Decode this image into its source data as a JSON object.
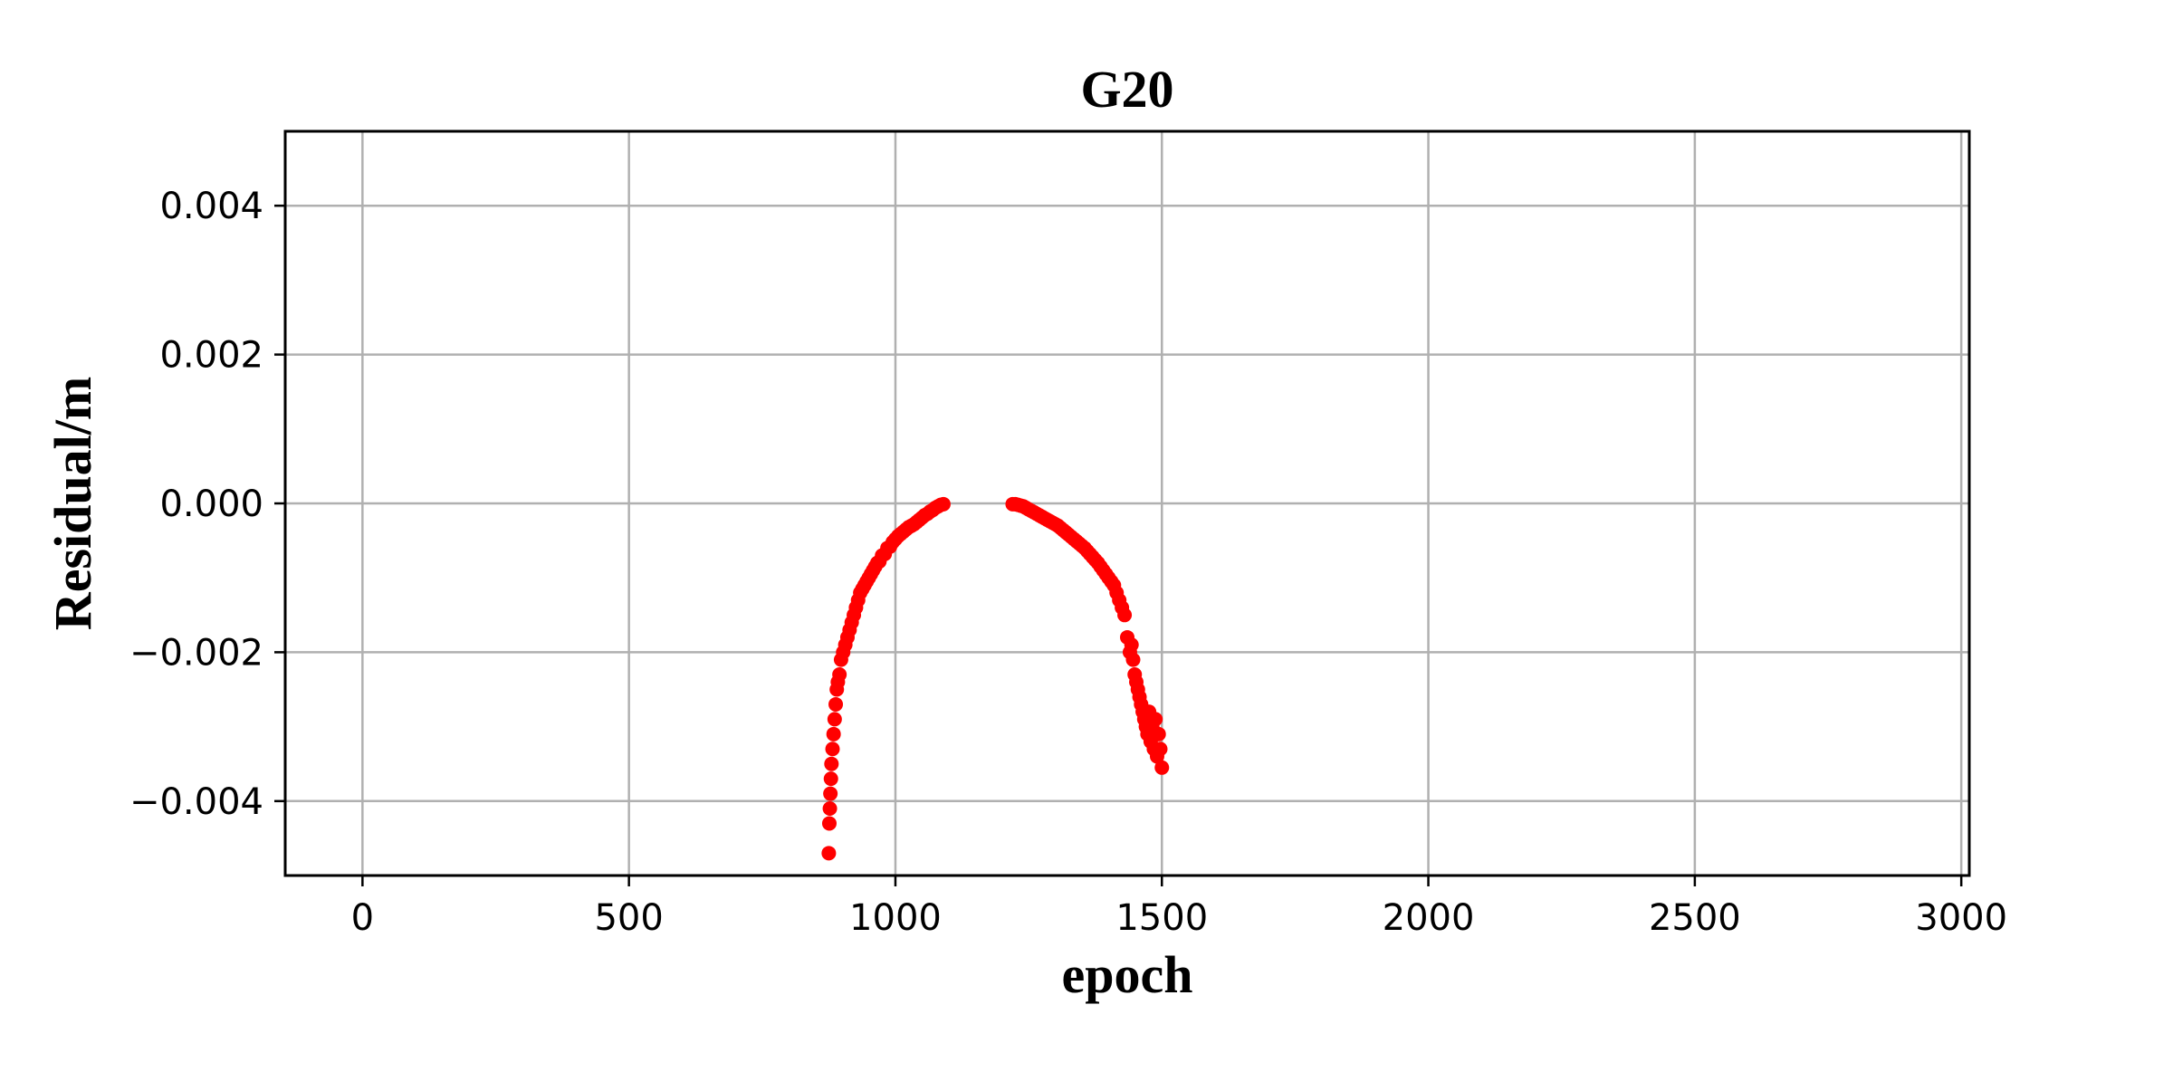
{
  "chart_data": {
    "type": "scatter",
    "title": "G20",
    "xlabel": "epoch",
    "ylabel": "Residual/m",
    "xlim": [
      -145,
      3015
    ],
    "ylim": [
      -0.005,
      0.005
    ],
    "x_ticks": [
      0,
      500,
      1000,
      1500,
      2000,
      2500,
      3000
    ],
    "x_tick_labels": [
      "0",
      "500",
      "1000",
      "1500",
      "2000",
      "2500",
      "3000"
    ],
    "y_ticks": [
      0.004,
      0.002,
      0.0,
      -0.002,
      -0.004
    ],
    "y_tick_labels": [
      "0.004",
      "0.002",
      "0.000",
      "−0.002",
      "−0.004"
    ],
    "grid": true,
    "marker_color": "#ff0000",
    "series": [
      {
        "x": [
          875,
          876,
          877,
          878,
          879,
          880,
          882,
          884,
          886,
          888,
          890,
          892,
          895,
          898,
          902,
          906,
          910,
          914,
          918,
          922,
          926,
          930,
          934,
          938,
          942,
          946,
          950,
          954,
          958,
          962,
          966,
          970,
          975,
          980,
          985,
          990,
          995,
          1000,
          1005,
          1010,
          1015,
          1020,
          1025,
          1030,
          1035,
          1040,
          1045,
          1050,
          1055,
          1060,
          1065,
          1070,
          1075,
          1080,
          1085,
          1090,
          1220,
          1225,
          1230,
          1235,
          1240,
          1245,
          1250,
          1255,
          1260,
          1265,
          1270,
          1275,
          1280,
          1285,
          1290,
          1295,
          1300,
          1305,
          1310,
          1315,
          1320,
          1325,
          1330,
          1335,
          1340,
          1345,
          1350,
          1355,
          1360,
          1365,
          1370,
          1375,
          1380,
          1385,
          1390,
          1395,
          1400,
          1405,
          1410,
          1415,
          1420,
          1425,
          1430,
          1435,
          1440,
          1443,
          1446,
          1449,
          1452,
          1455,
          1458,
          1461,
          1464,
          1467,
          1470,
          1473,
          1476,
          1479,
          1482,
          1485,
          1488,
          1491,
          1494,
          1497,
          1500
        ],
        "y": [
          -0.0047,
          -0.0043,
          -0.0041,
          -0.0039,
          -0.0037,
          -0.0035,
          -0.0033,
          -0.0031,
          -0.0029,
          -0.0027,
          -0.0025,
          -0.0024,
          -0.0023,
          -0.0021,
          -0.002,
          -0.0019,
          -0.0018,
          -0.0017,
          -0.0016,
          -0.0015,
          -0.0014,
          -0.0013,
          -0.0012,
          -0.00115,
          -0.0011,
          -0.00105,
          -0.001,
          -0.00095,
          -0.0009,
          -0.00085,
          -0.0008,
          -0.00078,
          -0.0007,
          -0.00068,
          -0.0006,
          -0.00058,
          -0.00052,
          -0.00048,
          -0.00044,
          -0.00041,
          -0.00038,
          -0.00035,
          -0.00032,
          -0.0003,
          -0.00028,
          -0.00025,
          -0.00022,
          -0.00019,
          -0.00016,
          -0.00014,
          -0.00011,
          -9e-05,
          -6e-05,
          -4e-05,
          -2e-05,
          -1e-05,
          -1e-05,
          -1e-05,
          -2e-05,
          -3e-05,
          -4e-05,
          -6e-05,
          -8e-05,
          -0.0001,
          -0.00012,
          -0.00014,
          -0.00016,
          -0.00018,
          -0.0002,
          -0.00022,
          -0.00024,
          -0.00026,
          -0.00028,
          -0.0003,
          -0.00033,
          -0.00036,
          -0.00039,
          -0.00042,
          -0.00045,
          -0.00048,
          -0.00051,
          -0.00054,
          -0.00057,
          -0.0006,
          -0.00064,
          -0.00068,
          -0.00072,
          -0.00076,
          -0.0008,
          -0.00085,
          -0.0009,
          -0.00095,
          -0.001,
          -0.00105,
          -0.0011,
          -0.0012,
          -0.0013,
          -0.0014,
          -0.0015,
          -0.0018,
          -0.002,
          -0.0019,
          -0.0021,
          -0.0023,
          -0.0024,
          -0.0025,
          -0.0026,
          -0.0027,
          -0.0028,
          -0.0029,
          -0.003,
          -0.0031,
          -0.0028,
          -0.0032,
          -0.003,
          -0.0033,
          -0.0029,
          -0.0034,
          -0.0031,
          -0.0033,
          -0.00355
        ]
      }
    ]
  }
}
